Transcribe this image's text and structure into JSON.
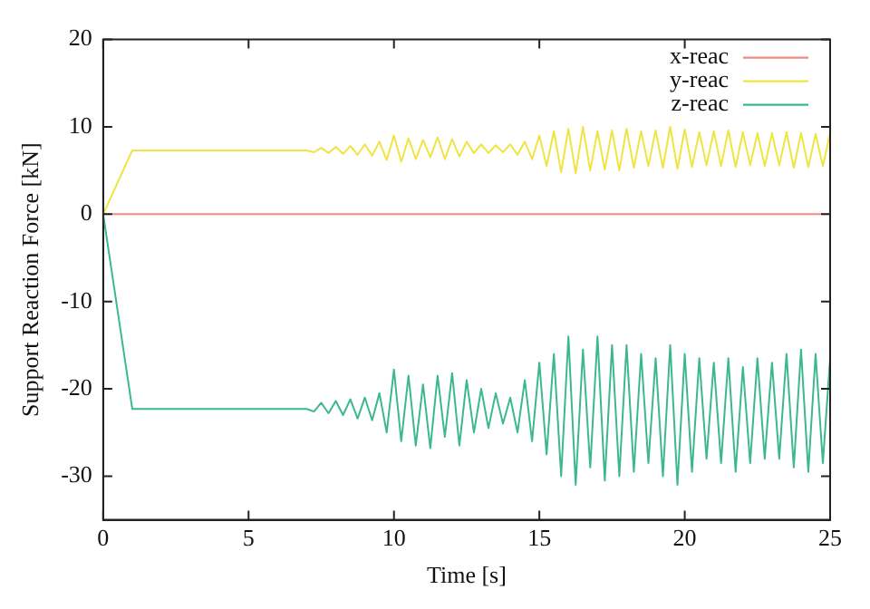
{
  "chart_data": {
    "type": "line",
    "xlabel": "Time [s]",
    "ylabel": "Support Reaction Force [kN]",
    "xlim": [
      0,
      25
    ],
    "xticks": [
      0,
      5,
      10,
      15,
      20,
      25
    ],
    "ylim": [
      -35,
      20
    ],
    "yticks": [
      -30,
      -20,
      -10,
      0,
      10,
      20
    ],
    "grid": false,
    "legend": "top right",
    "marker": "none",
    "line_style": "solid",
    "series": [
      {
        "name": "x-reac",
        "color": "#f08a80",
        "x": [
          0,
          25
        ],
        "values": [
          0,
          0
        ]
      },
      {
        "name": "y-reac",
        "color": "#f0e442",
        "x": [
          0,
          1,
          7,
          7.25,
          7.5,
          7.75,
          8,
          8.25,
          8.5,
          8.75,
          9,
          9.25,
          9.5,
          9.75,
          10,
          10.25,
          10.5,
          10.75,
          11,
          11.25,
          11.5,
          11.75,
          12,
          12.25,
          12.5,
          12.75,
          13,
          13.25,
          13.5,
          13.75,
          14,
          14.25,
          14.5,
          14.75,
          15,
          15.25,
          15.5,
          15.75,
          16,
          16.25,
          16.5,
          16.75,
          17,
          17.25,
          17.5,
          17.75,
          18,
          18.25,
          18.5,
          18.75,
          19,
          19.25,
          19.5,
          19.75,
          20,
          20.25,
          20.5,
          20.75,
          21,
          21.25,
          21.5,
          21.75,
          22,
          22.25,
          22.5,
          22.75,
          23,
          23.25,
          23.5,
          23.75,
          24,
          24.25,
          24.5,
          24.75,
          25
        ],
        "values": [
          0,
          7.3,
          7.3,
          7.1,
          7.6,
          7.0,
          7.7,
          6.9,
          7.8,
          6.8,
          8.0,
          6.7,
          8.3,
          6.2,
          9.0,
          6.0,
          8.7,
          6.3,
          8.5,
          6.5,
          8.8,
          6.3,
          8.6,
          6.6,
          8.3,
          7.0,
          8.0,
          7.0,
          7.9,
          7.1,
          8.0,
          6.8,
          8.3,
          6.3,
          9.0,
          5.5,
          9.5,
          4.8,
          9.8,
          4.7,
          10.0,
          5.0,
          9.5,
          5.1,
          9.6,
          5.0,
          9.8,
          5.3,
          9.5,
          5.5,
          9.6,
          5.3,
          10.0,
          5.2,
          9.7,
          5.4,
          9.4,
          5.6,
          9.5,
          5.5,
          9.6,
          5.4,
          9.4,
          5.6,
          9.3,
          5.5,
          9.3,
          5.6,
          9.4,
          5.3,
          9.3,
          5.4,
          9.2,
          5.5,
          9.3
        ]
      },
      {
        "name": "z-reac",
        "color": "#3cb88f",
        "x": [
          0,
          1,
          7,
          7.25,
          7.5,
          7.75,
          8,
          8.25,
          8.5,
          8.75,
          9,
          9.25,
          9.5,
          9.75,
          10,
          10.25,
          10.5,
          10.75,
          11,
          11.25,
          11.5,
          11.75,
          12,
          12.25,
          12.5,
          12.75,
          13,
          13.25,
          13.5,
          13.75,
          14,
          14.25,
          14.5,
          14.75,
          15,
          15.25,
          15.5,
          15.75,
          16,
          16.25,
          16.5,
          16.75,
          17,
          17.25,
          17.5,
          17.75,
          18,
          18.25,
          18.5,
          18.75,
          19,
          19.25,
          19.5,
          19.75,
          20,
          20.25,
          20.5,
          20.75,
          21,
          21.25,
          21.5,
          21.75,
          22,
          22.25,
          22.5,
          22.75,
          23,
          23.25,
          23.5,
          23.75,
          24,
          24.25,
          24.5,
          24.75,
          25
        ],
        "values": [
          0,
          -22.3,
          -22.3,
          -22.6,
          -21.6,
          -22.8,
          -21.4,
          -23.0,
          -21.2,
          -23.4,
          -21.0,
          -23.6,
          -20.5,
          -25.0,
          -17.8,
          -26.0,
          -18.5,
          -26.5,
          -19.5,
          -26.8,
          -18.5,
          -25.5,
          -18.2,
          -26.5,
          -19.0,
          -25.0,
          -20.0,
          -24.5,
          -20.5,
          -24.0,
          -21.0,
          -25.0,
          -19.0,
          -26.0,
          -17.0,
          -27.5,
          -16.0,
          -30.0,
          -14.0,
          -31.0,
          -15.5,
          -29.0,
          -14.0,
          -30.5,
          -15.0,
          -30.0,
          -15.0,
          -29.5,
          -16.0,
          -28.5,
          -16.5,
          -30.0,
          -15.0,
          -31.0,
          -16.0,
          -29.5,
          -16.5,
          -28.0,
          -17.0,
          -28.5,
          -16.5,
          -29.5,
          -17.5,
          -28.5,
          -16.5,
          -28.0,
          -17.0,
          -28.0,
          -16.0,
          -29.0,
          -15.5,
          -29.5,
          -16.0,
          -28.5,
          -16.5
        ]
      }
    ]
  }
}
